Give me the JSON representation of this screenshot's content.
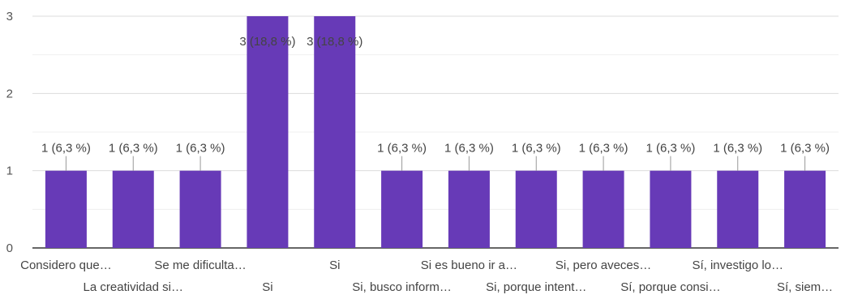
{
  "chart_data": {
    "type": "bar",
    "title": "",
    "xlabel": "",
    "ylabel": "",
    "ylim": [
      0,
      3
    ],
    "yticks": [
      0,
      1,
      2,
      3
    ],
    "grid": true,
    "bar_color": "#673ab7",
    "categories": [
      "Considero que…",
      "La creatividad si…",
      "Se me dificulta…",
      "Si",
      "Si",
      "Si, busco inform…",
      "Si es bueno ir a…",
      "Si, porque intent…",
      "Si, pero aveces…",
      "Sí, porque consi…",
      "Sí, investigo lo…",
      "Sí, siem…"
    ],
    "values": [
      1,
      1,
      1,
      3,
      3,
      1,
      1,
      1,
      1,
      1,
      1,
      1
    ],
    "data_labels": [
      "1 (6,3 %)",
      "1 (6,3 %)",
      "1 (6,3 %)",
      "3 (18,8 %)",
      "3 (18,8 %)",
      "1 (6,3 %)",
      "1 (6,3 %)",
      "1 (6,3 %)",
      "1 (6,3 %)",
      "1 (6,3 %)",
      "1 (6,3 %)",
      "1 (6,3 %)"
    ]
  }
}
